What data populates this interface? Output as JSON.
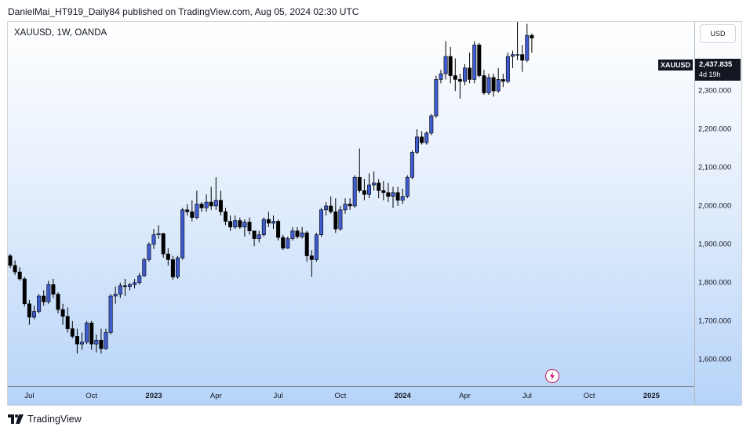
{
  "caption": "DanielMai_HT919_Daily84 published on TradingView.com, Aug 05, 2024 02:30 UTC",
  "symbol_title": "XAUUSD, 1W, OANDA",
  "currency_button": "USD",
  "symbol_tag": "XAUUSD",
  "last_price": "2,437.835",
  "countdown": "4d 19h",
  "footer_brand": "TradingView",
  "colors": {
    "up": "#3f5ccf",
    "down": "#000000",
    "wick": "#000000",
    "accent": "#c2185b"
  },
  "chart_data": {
    "type": "candlestick",
    "timeframe": "1W",
    "y_range": [
      1530,
      2480
    ],
    "price_ticks": [
      "1,600.000",
      "1,700.000",
      "1,800.000",
      "1,900.000",
      "2,000.000",
      "2,100.000",
      "2,200.000",
      "2,300.000"
    ],
    "price_tick_values": [
      1600,
      1700,
      1800,
      1900,
      2000,
      2100,
      2200,
      2300
    ],
    "time_ticks": [
      {
        "label": "Jul",
        "bold": false
      },
      {
        "label": "Oct",
        "bold": false
      },
      {
        "label": "2023",
        "bold": true
      },
      {
        "label": "Apr",
        "bold": false
      },
      {
        "label": "Jul",
        "bold": false
      },
      {
        "label": "Oct",
        "bold": false
      },
      {
        "label": "2024",
        "bold": true
      },
      {
        "label": "Apr",
        "bold": false
      },
      {
        "label": "Jul",
        "bold": false
      },
      {
        "label": "Oct",
        "bold": false
      },
      {
        "label": "2025",
        "bold": true
      }
    ],
    "time_tick_bar_index": [
      4,
      17,
      30,
      43,
      56,
      69,
      82,
      95,
      108,
      121,
      134
    ],
    "candles": [
      [
        1870,
        1875,
        1838,
        1845
      ],
      [
        1845,
        1858,
        1820,
        1828
      ],
      [
        1828,
        1840,
        1805,
        1810
      ],
      [
        1810,
        1815,
        1738,
        1745
      ],
      [
        1745,
        1755,
        1690,
        1710
      ],
      [
        1710,
        1740,
        1705,
        1725
      ],
      [
        1725,
        1770,
        1720,
        1765
      ],
      [
        1765,
        1780,
        1740,
        1750
      ],
      [
        1750,
        1805,
        1745,
        1795
      ],
      [
        1795,
        1810,
        1760,
        1770
      ],
      [
        1770,
        1775,
        1720,
        1730
      ],
      [
        1730,
        1745,
        1690,
        1712
      ],
      [
        1712,
        1735,
        1670,
        1680
      ],
      [
        1680,
        1700,
        1655,
        1660
      ],
      [
        1660,
        1680,
        1615,
        1640
      ],
      [
        1640,
        1670,
        1625,
        1645
      ],
      [
        1645,
        1700,
        1640,
        1695
      ],
      [
        1695,
        1700,
        1625,
        1640
      ],
      [
        1640,
        1665,
        1618,
        1650
      ],
      [
        1650,
        1680,
        1615,
        1628
      ],
      [
        1628,
        1680,
        1625,
        1670
      ],
      [
        1670,
        1770,
        1665,
        1765
      ],
      [
        1765,
        1790,
        1745,
        1770
      ],
      [
        1770,
        1800,
        1760,
        1792
      ],
      [
        1792,
        1810,
        1765,
        1790
      ],
      [
        1790,
        1800,
        1780,
        1795
      ],
      [
        1795,
        1810,
        1785,
        1800
      ],
      [
        1800,
        1825,
        1795,
        1818
      ],
      [
        1818,
        1865,
        1815,
        1860
      ],
      [
        1860,
        1905,
        1855,
        1900
      ],
      [
        1900,
        1940,
        1888,
        1925
      ],
      [
        1925,
        1950,
        1915,
        1928
      ],
      [
        1928,
        1930,
        1865,
        1875
      ],
      [
        1875,
        1890,
        1845,
        1860
      ],
      [
        1860,
        1870,
        1808,
        1815
      ],
      [
        1815,
        1870,
        1810,
        1865
      ],
      [
        1865,
        1995,
        1860,
        1990
      ],
      [
        1990,
        2005,
        1975,
        1985
      ],
      [
        1985,
        2015,
        1960,
        1970
      ],
      [
        1970,
        2040,
        1965,
        2005
      ],
      [
        2005,
        2010,
        1985,
        1995
      ],
      [
        1995,
        2030,
        1985,
        2010
      ],
      [
        2010,
        2050,
        1990,
        2000
      ],
      [
        2000,
        2075,
        1990,
        2015
      ],
      [
        2015,
        2040,
        1975,
        1985
      ],
      [
        1985,
        1995,
        1950,
        1960
      ],
      [
        1960,
        1975,
        1935,
        1945
      ],
      [
        1945,
        1975,
        1940,
        1962
      ],
      [
        1962,
        1970,
        1940,
        1945
      ],
      [
        1945,
        1965,
        1920,
        1958
      ],
      [
        1958,
        1970,
        1925,
        1935
      ],
      [
        1935,
        1935,
        1895,
        1915
      ],
      [
        1915,
        1935,
        1905,
        1925
      ],
      [
        1925,
        1970,
        1920,
        1965
      ],
      [
        1965,
        1985,
        1945,
        1955
      ],
      [
        1955,
        1975,
        1940,
        1960
      ],
      [
        1960,
        1965,
        1910,
        1918
      ],
      [
        1918,
        1925,
        1885,
        1890
      ],
      [
        1890,
        1920,
        1888,
        1915
      ],
      [
        1915,
        1945,
        1910,
        1935
      ],
      [
        1935,
        1945,
        1915,
        1920
      ],
      [
        1920,
        1945,
        1915,
        1930
      ],
      [
        1930,
        1935,
        1855,
        1870
      ],
      [
        1870,
        1885,
        1815,
        1860
      ],
      [
        1860,
        1930,
        1855,
        1925
      ],
      [
        1925,
        1995,
        1920,
        1990
      ],
      [
        1990,
        2010,
        1975,
        2000
      ],
      [
        2000,
        2025,
        1980,
        1985
      ],
      [
        1985,
        2020,
        1930,
        1940
      ],
      [
        1940,
        2000,
        1935,
        1990
      ],
      [
        1990,
        2020,
        1980,
        2005
      ],
      [
        2005,
        2020,
        1990,
        2000
      ],
      [
        2000,
        2080,
        1995,
        2075
      ],
      [
        2075,
        2150,
        2035,
        2040
      ],
      [
        2040,
        2070,
        2015,
        2030
      ],
      [
        2030,
        2085,
        2020,
        2055
      ],
      [
        2055,
        2090,
        2040,
        2060
      ],
      [
        2060,
        2070,
        2020,
        2040
      ],
      [
        2040,
        2065,
        2015,
        2035
      ],
      [
        2035,
        2060,
        2010,
        2025
      ],
      [
        2025,
        2050,
        1995,
        2035
      ],
      [
        2035,
        2050,
        2000,
        2015
      ],
      [
        2015,
        2045,
        2005,
        2025
      ],
      [
        2025,
        2080,
        2020,
        2075
      ],
      [
        2075,
        2145,
        2070,
        2140
      ],
      [
        2140,
        2200,
        2135,
        2180
      ],
      [
        2180,
        2195,
        2160,
        2165
      ],
      [
        2165,
        2195,
        2160,
        2190
      ],
      [
        2190,
        2240,
        2185,
        2235
      ],
      [
        2235,
        2340,
        2230,
        2330
      ],
      [
        2330,
        2355,
        2320,
        2345
      ],
      [
        2345,
        2430,
        2330,
        2390
      ],
      [
        2390,
        2415,
        2320,
        2340
      ],
      [
        2340,
        2385,
        2300,
        2330
      ],
      [
        2330,
        2345,
        2280,
        2325
      ],
      [
        2325,
        2370,
        2315,
        2360
      ],
      [
        2360,
        2400,
        2320,
        2330
      ],
      [
        2330,
        2430,
        2320,
        2420
      ],
      [
        2420,
        2425,
        2335,
        2340
      ],
      [
        2340,
        2355,
        2290,
        2295
      ],
      [
        2295,
        2345,
        2290,
        2335
      ],
      [
        2335,
        2345,
        2285,
        2300
      ],
      [
        2300,
        2360,
        2295,
        2330
      ],
      [
        2330,
        2345,
        2310,
        2325
      ],
      [
        2325,
        2400,
        2320,
        2390
      ],
      [
        2390,
        2405,
        2360,
        2395
      ],
      [
        2395,
        2480,
        2380,
        2395
      ],
      [
        2395,
        2420,
        2350,
        2380
      ],
      [
        2380,
        2475,
        2375,
        2445
      ],
      [
        2445,
        2450,
        2400,
        2438
      ]
    ]
  }
}
